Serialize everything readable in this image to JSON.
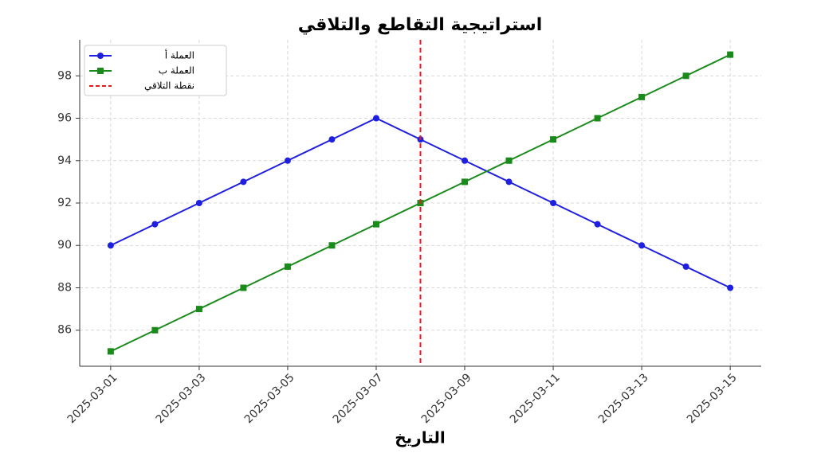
{
  "chart_data": {
    "type": "line",
    "title": "استراتيجية التقاطع والتلاقي",
    "x_label": "التاريخ",
    "x": [
      "2025-03-01",
      "2025-03-02",
      "2025-03-03",
      "2025-03-04",
      "2025-03-05",
      "2025-03-06",
      "2025-03-07",
      "2025-03-08",
      "2025-03-09",
      "2025-03-10",
      "2025-03-11",
      "2025-03-12",
      "2025-03-13",
      "2025-03-14",
      "2025-03-15"
    ],
    "xticks": [
      "2025-03-01",
      "2025-03-03",
      "2025-03-05",
      "2025-03-07",
      "2025-03-09",
      "2025-03-11",
      "2025-03-13",
      "2025-03-15"
    ],
    "series": [
      {
        "name": "العملة أ",
        "color": "#1f1fe0",
        "marker": "circle",
        "values": [
          90,
          91,
          92,
          93,
          94,
          95,
          96,
          95,
          94,
          93,
          92,
          91,
          90,
          89,
          88
        ]
      },
      {
        "name": "العملة ب",
        "color": "#1a8a1a",
        "marker": "square",
        "values": [
          85,
          86,
          87,
          88,
          89,
          90,
          91,
          92,
          93,
          94,
          95,
          96,
          97,
          98,
          99
        ]
      }
    ],
    "vline": {
      "x": "2025-03-08",
      "name": "نقطة التلاقي",
      "color": "#e41a1c"
    },
    "ylim": [
      84.3,
      99.7
    ],
    "yticks": [
      86,
      88,
      90,
      92,
      94,
      96,
      98
    ],
    "grid": true,
    "legend": "upper left"
  }
}
